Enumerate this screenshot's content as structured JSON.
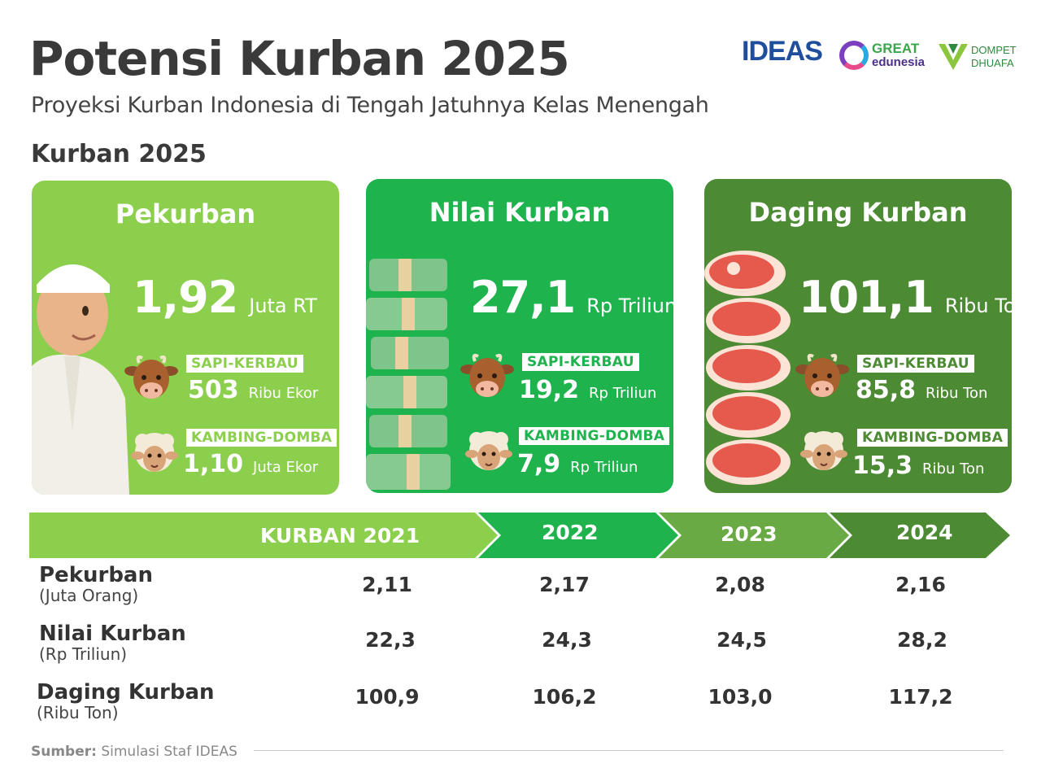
{
  "header": {
    "title": "Potensi Kurban 2025",
    "subtitle": "Proyeksi Kurban Indonesia di Tengah Jatuhnya Kelas Menengah",
    "section_heading": "Kurban 2025"
  },
  "logos": [
    {
      "name": "IDEAS",
      "text": "IDEAS"
    },
    {
      "name": "GREAT edunesia",
      "text_top": "GREAT",
      "text_bottom": "edunesia"
    },
    {
      "name": "DOMPET DHUAFA",
      "text_top": "DOMPET",
      "text_bottom": "DHUAFA"
    }
  ],
  "colors": {
    "card_pekurban": "#8ccf4d",
    "card_nilai": "#1fb34e",
    "card_daging": "#4d8a34",
    "text_dark": "#3a3a3a"
  },
  "cards": [
    {
      "title": "Pekurban",
      "value": "1,92",
      "unit": "Juta RT",
      "icon": "person-icon",
      "cattle": {
        "label": "SAPI-KERBAU",
        "value": "503",
        "unit": "Ribu Ekor"
      },
      "goat": {
        "label": "KAMBING-DOMBA",
        "value": "1,10",
        "unit": "Juta Ekor"
      }
    },
    {
      "title": "Nilai Kurban",
      "value": "27,1",
      "unit": "Rp Triliun",
      "icon": "money-stack-icon",
      "cattle": {
        "label": "SAPI-KERBAU",
        "value": "19,2",
        "unit": "Rp Triliun"
      },
      "goat": {
        "label": "KAMBING-DOMBA",
        "value": "7,9",
        "unit": "Rp Triliun"
      }
    },
    {
      "title": "Daging Kurban",
      "value": "101,1",
      "unit": "Ribu Ton",
      "icon": "meat-stack-icon",
      "cattle": {
        "label": "SAPI-KERBAU",
        "value": "85,8",
        "unit": "Ribu Ton"
      },
      "goat": {
        "label": "KAMBING-DOMBA",
        "value": "15,3",
        "unit": "Ribu Ton"
      }
    }
  ],
  "history": {
    "years": [
      "KURBAN 2021",
      "2022",
      "2023",
      "2024"
    ],
    "rows": [
      {
        "label": "Pekurban",
        "unit": "(Juta Orang)",
        "values": [
          "2,11",
          "2,17",
          "2,08",
          "2,16"
        ]
      },
      {
        "label": "Nilai Kurban",
        "unit": "(Rp Triliun)",
        "values": [
          "22,3",
          "24,3",
          "24,5",
          "28,2"
        ]
      },
      {
        "label": "Daging Kurban",
        "unit": "(Ribu Ton)",
        "values": [
          "100,9",
          "106,2",
          "103,0",
          "117,2"
        ]
      }
    ]
  },
  "source": {
    "label": "Sumber:",
    "text": "Simulasi Staf IDEAS"
  }
}
